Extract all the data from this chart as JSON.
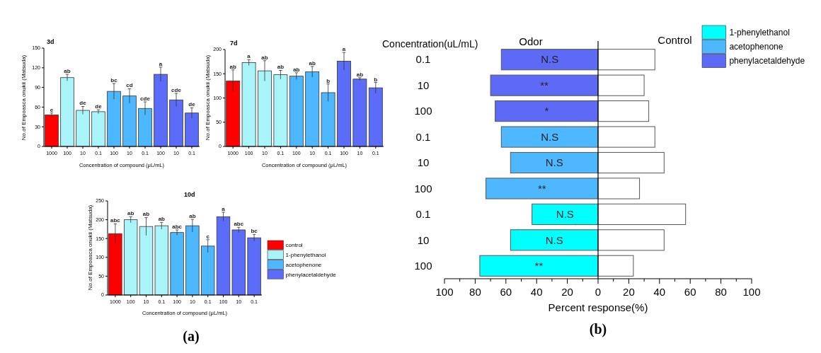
{
  "chart_data": [
    {
      "type": "bar",
      "title": "3d",
      "xlabel": "Concentration of compound (μL/mL)",
      "ylabel": "No.of Empoasca onukii (Matsuda)",
      "categories": [
        "1000",
        "100",
        "10",
        "0.1",
        "100",
        "10",
        "0.1",
        "100",
        "10",
        "0.1"
      ],
      "ylim": [
        0,
        150
      ],
      "yticks": [
        0,
        30,
        60,
        90,
        120,
        150
      ],
      "series": [
        {
          "color": "#ff0000",
          "values": [
            48,
            null,
            null,
            null,
            null,
            null,
            null,
            null,
            null,
            null
          ],
          "errors": [
            3,
            null,
            null,
            null,
            null,
            null,
            null,
            null,
            null,
            null
          ],
          "value_labels": [
            "e",
            null,
            null,
            null,
            null,
            null,
            null,
            null,
            null,
            null
          ]
        },
        {
          "color": "#a8f4f8",
          "values": [
            null,
            105,
            55,
            53,
            null,
            null,
            null,
            null,
            null,
            null
          ],
          "errors": [
            null,
            5,
            6,
            3,
            null,
            null,
            null,
            null,
            null,
            null
          ],
          "value_labels": [
            null,
            "ab",
            "de",
            "de",
            null,
            null,
            null,
            null,
            null,
            null
          ]
        },
        {
          "color": "#4db8ff",
          "values": [
            null,
            null,
            null,
            null,
            84,
            77,
            58,
            null,
            null,
            null
          ],
          "errors": [
            null,
            null,
            null,
            null,
            12,
            11,
            10,
            null,
            null,
            null
          ],
          "value_labels": [
            null,
            null,
            null,
            null,
            "bc",
            "cd",
            "cde",
            null,
            null,
            null
          ]
        },
        {
          "color": "#5b6cf8",
          "values": [
            null,
            null,
            null,
            null,
            null,
            null,
            null,
            110,
            71,
            51
          ],
          "errors": [
            null,
            null,
            null,
            null,
            null,
            null,
            null,
            11,
            10,
            8
          ],
          "value_labels": [
            null,
            null,
            null,
            null,
            null,
            null,
            null,
            "a",
            "cde",
            "de"
          ]
        }
      ]
    },
    {
      "type": "bar",
      "title": "7d",
      "xlabel": "Concentration of compound (μL/mL)",
      "ylabel": "No.of Empoasca onukii (Matsuda)",
      "categories": [
        "1000",
        "100",
        "10",
        "0.1",
        "100",
        "10",
        "0.1",
        "100",
        "10",
        "0.1"
      ],
      "ylim": [
        0,
        200
      ],
      "yticks": [
        0,
        50,
        100,
        150,
        200
      ],
      "series": [
        {
          "color": "#ff0000",
          "values": [
            135,
            null,
            null,
            null,
            null,
            null,
            null,
            null,
            null,
            null
          ],
          "errors": [
            23,
            null,
            null,
            null,
            null,
            null,
            null,
            null,
            null,
            null
          ],
          "value_labels": [
            "ab",
            null,
            null,
            null,
            null,
            null,
            null,
            null,
            null,
            null
          ]
        },
        {
          "color": "#a8f4f8",
          "values": [
            null,
            173,
            156,
            148,
            null,
            null,
            null,
            null,
            null,
            null
          ],
          "errors": [
            null,
            6,
            21,
            9,
            null,
            null,
            null,
            null,
            null,
            null
          ],
          "value_labels": [
            null,
            "a",
            "ab",
            "ab",
            null,
            null,
            null,
            null,
            null,
            null
          ]
        },
        {
          "color": "#4db8ff",
          "values": [
            null,
            null,
            null,
            null,
            145,
            154,
            111,
            null,
            null,
            null
          ],
          "errors": [
            null,
            null,
            null,
            null,
            7,
            11,
            18,
            null,
            null,
            null
          ],
          "value_labels": [
            null,
            null,
            null,
            null,
            "ab",
            "ab",
            "b",
            null,
            null,
            null
          ]
        },
        {
          "color": "#5b6cf8",
          "values": [
            null,
            null,
            null,
            null,
            null,
            null,
            null,
            176,
            139,
            121
          ],
          "errors": [
            null,
            null,
            null,
            null,
            null,
            null,
            null,
            18,
            3,
            11
          ],
          "value_labels": [
            null,
            null,
            null,
            null,
            null,
            null,
            null,
            "a",
            "ab",
            "b"
          ]
        }
      ]
    },
    {
      "type": "bar",
      "title": "10d",
      "xlabel": "Concentration of compound (μL/mL)",
      "ylabel": "No.of Empoasca onukii (Matsuda)",
      "annotations": [
        "(a)"
      ],
      "categories": [
        "1000",
        "100",
        "10",
        "0.1",
        "100",
        "10",
        "0.1",
        "100",
        "10",
        "0.1"
      ],
      "ylim": [
        0,
        250
      ],
      "yticks": [
        0,
        50,
        100,
        150,
        200,
        250
      ],
      "legend": "right",
      "series": [
        {
          "name": "control",
          "color": "#ff0000",
          "values": [
            163,
            null,
            null,
            null,
            null,
            null,
            null,
            null,
            null,
            null
          ],
          "errors": [
            26,
            null,
            null,
            null,
            null,
            null,
            null,
            null,
            null,
            null
          ],
          "value_labels": [
            "abc",
            null,
            null,
            null,
            null,
            null,
            null,
            null,
            null,
            null
          ]
        },
        {
          "name": "1-phenylethanol",
          "color": "#a8f4f8",
          "values": [
            null,
            200,
            182,
            184,
            null,
            null,
            null,
            null,
            null,
            null
          ],
          "errors": [
            null,
            8,
            24,
            9,
            null,
            null,
            null,
            null,
            null,
            null
          ],
          "value_labels": [
            null,
            "ab",
            "ab",
            "ab",
            null,
            null,
            null,
            null,
            null,
            null
          ]
        },
        {
          "name": "acetophenone",
          "color": "#4db8ff",
          "values": [
            null,
            null,
            null,
            null,
            166,
            184,
            130,
            null,
            null,
            null
          ],
          "errors": [
            null,
            null,
            null,
            null,
            7,
            17,
            17,
            null,
            null,
            null
          ],
          "value_labels": [
            null,
            null,
            null,
            null,
            "abc",
            "ab",
            "c",
            null,
            null,
            null
          ]
        },
        {
          "name": "phenylacetaldehyde",
          "color": "#5b6cf8",
          "values": [
            null,
            null,
            null,
            null,
            null,
            null,
            null,
            208,
            173,
            152
          ],
          "errors": [
            null,
            null,
            null,
            null,
            null,
            null,
            null,
            12,
            7,
            9
          ],
          "value_labels": [
            null,
            null,
            null,
            null,
            null,
            null,
            null,
            "a",
            "abc",
            "bc"
          ]
        }
      ]
    },
    {
      "type": "bar",
      "orientation": "horizontal",
      "stacked": true,
      "xlabel": "Percent response(%)",
      "ylabel": "Concentration(uL/mL)",
      "annotations": [
        "Odor",
        "(b)"
      ],
      "legend": "top right",
      "categories": [
        "0.1",
        "10",
        "100",
        "0.1",
        "10",
        "100",
        "0.1",
        "10",
        "100"
      ],
      "xlim": [
        -100,
        100
      ],
      "xticks": [
        {
          "value": -100,
          "label": "100"
        },
        {
          "value": -90,
          "label": null
        },
        {
          "value": -80,
          "label": "80"
        },
        {
          "value": -70,
          "label": null
        },
        {
          "value": -60,
          "label": "60"
        },
        {
          "value": -50,
          "label": null
        },
        {
          "value": -40,
          "label": "40"
        },
        {
          "value": -30,
          "label": null
        },
        {
          "value": -20,
          "label": "20"
        },
        {
          "value": -10,
          "label": null
        },
        0,
        {
          "value": 10,
          "label": null
        },
        20,
        {
          "value": 30,
          "label": null
        },
        40,
        {
          "value": 50,
          "label": null
        },
        60,
        {
          "value": 70,
          "label": null
        },
        80,
        {
          "value": 90,
          "label": null
        },
        100
      ],
      "ref_lines": [
        {
          "axis": "x",
          "value": 0,
          "color": "#000000"
        }
      ],
      "series": [
        {
          "name": "1-phenylethanol",
          "color": "#00ffff",
          "values": [
            null,
            null,
            null,
            null,
            null,
            null,
            -43,
            -57,
            -77
          ],
          "value_labels": [
            null,
            null,
            null,
            null,
            null,
            null,
            "N.S",
            "N.S",
            "**"
          ]
        },
        {
          "name": "acetophenone",
          "color": "#4db8ff",
          "values": [
            null,
            null,
            null,
            -63,
            -57,
            -73,
            null,
            null,
            null
          ],
          "value_labels": [
            null,
            null,
            null,
            "N.S",
            "N.S",
            "**",
            null,
            null,
            null
          ]
        },
        {
          "name": "phenylacetaldehyde",
          "color": "#5d6af5",
          "values": [
            -63,
            -70,
            -67,
            null,
            null,
            null,
            null,
            null,
            null
          ],
          "value_labels": [
            "N.S",
            "**",
            "*",
            null,
            null,
            null,
            null,
            null,
            null
          ]
        },
        {
          "name": "Control",
          "color": "#ffffff",
          "values": [
            37,
            30,
            33,
            37,
            43,
            27,
            57,
            43,
            23
          ]
        }
      ]
    }
  ]
}
